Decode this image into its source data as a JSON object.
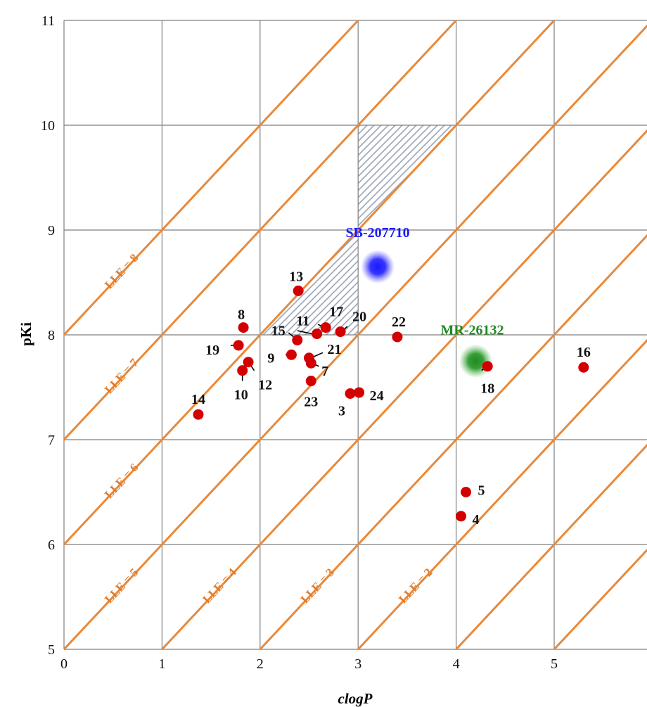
{
  "chart_data": {
    "type": "scatter",
    "xlabel": "clogP",
    "ylabel": "pKi",
    "xlim": [
      0,
      6
    ],
    "ylim": [
      5,
      11
    ],
    "xticks": [
      "0",
      "1",
      "2",
      "3",
      "4",
      "5"
    ],
    "yticks": [
      "5",
      "6",
      "7",
      "8",
      "9",
      "10",
      "11"
    ],
    "grid": true,
    "lle_lines": [
      {
        "label": "LLE = 2",
        "value": 2
      },
      {
        "label": "LLE = 3",
        "value": 3
      },
      {
        "label": "LLE = 4",
        "value": 4
      },
      {
        "label": "LLE = 5",
        "value": 5
      },
      {
        "label": "LLE = 6",
        "value": 6
      },
      {
        "label": "LLE = 7",
        "value": 7
      },
      {
        "label": "LLE = 8",
        "value": 8
      },
      {
        "value": 1
      },
      {
        "value": 0
      },
      {
        "value": -1
      },
      {
        "value": -2
      }
    ],
    "optimal_region": {
      "lle_min": 6,
      "pki_max": 10,
      "clogp_max": 3
    },
    "points": [
      {
        "label": "3",
        "x": 2.92,
        "y": 7.44
      },
      {
        "label": "4",
        "x": 4.05,
        "y": 6.27
      },
      {
        "label": "5",
        "x": 4.1,
        "y": 6.5
      },
      {
        "label": "7",
        "x": 2.52,
        "y": 7.73
      },
      {
        "label": "8",
        "x": 1.83,
        "y": 8.07
      },
      {
        "label": "9",
        "x": 2.32,
        "y": 7.81
      },
      {
        "label": "10",
        "x": 1.82,
        "y": 7.66
      },
      {
        "label": "11",
        "x": 2.58,
        "y": 8.01
      },
      {
        "label": "12",
        "x": 1.88,
        "y": 7.74
      },
      {
        "label": "13",
        "x": 2.39,
        "y": 8.42
      },
      {
        "label": "14",
        "x": 1.37,
        "y": 7.24
      },
      {
        "label": "15",
        "x": 2.38,
        "y": 7.95
      },
      {
        "label": "16",
        "x": 5.3,
        "y": 7.69
      },
      {
        "label": "17",
        "x": 2.67,
        "y": 8.07
      },
      {
        "label": "18",
        "x": 4.32,
        "y": 7.7
      },
      {
        "label": "19",
        "x": 1.78,
        "y": 7.9
      },
      {
        "label": "20",
        "x": 2.82,
        "y": 8.03
      },
      {
        "label": "21",
        "x": 2.5,
        "y": 7.78
      },
      {
        "label": "22",
        "x": 3.4,
        "y": 7.98
      },
      {
        "label": "23",
        "x": 2.52,
        "y": 7.56
      },
      {
        "label": "24",
        "x": 3.01,
        "y": 7.45
      }
    ],
    "reference_compounds": [
      {
        "label": "SB-207710",
        "x": 3.2,
        "y": 8.65,
        "color": "#1a1aff"
      },
      {
        "label": "MR-26132",
        "x": 4.2,
        "y": 7.75,
        "color": "#1f8a1f"
      }
    ],
    "colors": {
      "point": "#d40000",
      "lle_line": "#e8893a",
      "lle_label": "#e07b2a",
      "grid": "#7f7f7f",
      "hatch": "#9aa4b6"
    }
  }
}
